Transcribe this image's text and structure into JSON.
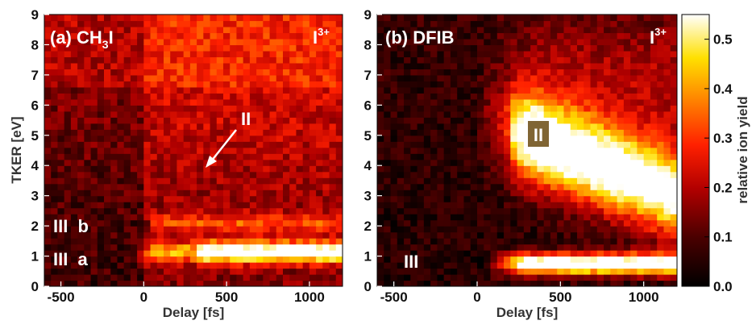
{
  "chart_data": [
    {
      "type": "heatmap",
      "panel_title": "(a) CH",
      "panel_title_sub": "3",
      "panel_title_suffix": "I",
      "ion_label": "I",
      "ion_label_sup": "3+",
      "xlabel": "Delay [fs]",
      "ylabel": "TKER [eV]",
      "xlim": [
        -600,
        1200
      ],
      "ylim": [
        0,
        9
      ],
      "x_ticks": [
        -500,
        0,
        500,
        1000
      ],
      "y_ticks": [
        0,
        1,
        2,
        3,
        4,
        5,
        6,
        7,
        8,
        9
      ],
      "annotations": [
        {
          "text": "II",
          "x": 650,
          "y": 5.3,
          "arrow_to": [
            420,
            3.9
          ]
        },
        {
          "text": "III  b",
          "x": -450,
          "y": 2.0
        },
        {
          "text": "III  a",
          "x": -450,
          "y": 0.95
        }
      ],
      "features": [
        {
          "description": "band",
          "delay_from": 50,
          "tker_center": 1.15,
          "level": 0.55
        },
        {
          "description": "band",
          "delay_from": 50,
          "tker_center": 2.1,
          "level": 0.22
        }
      ]
    },
    {
      "type": "heatmap",
      "panel_title": "(b) DFIB",
      "ion_label": "I",
      "ion_label_sup": "3+",
      "xlabel": "Delay [fs]",
      "ylabel": "",
      "xlim": [
        -600,
        1200
      ],
      "ylim": [
        0,
        9
      ],
      "x_ticks": [
        -500,
        0,
        500,
        1000
      ],
      "y_ticks": [
        0,
        1,
        2,
        3,
        4,
        5,
        6,
        7,
        8,
        9
      ],
      "annotations": [
        {
          "text": "II",
          "x": 420,
          "y": 5.0,
          "boxed": true
        },
        {
          "text": "III",
          "x": -300,
          "y": 0.8
        }
      ],
      "colorbar": {
        "label": "relative ion yield",
        "range": [
          0.0,
          0.55
        ],
        "ticks": [
          "0.0",
          "0.1",
          "0.2",
          "0.3",
          "0.4",
          "0.5"
        ],
        "tick_values": [
          0.0,
          0.1,
          0.2,
          0.3,
          0.4,
          0.5
        ]
      }
    }
  ]
}
